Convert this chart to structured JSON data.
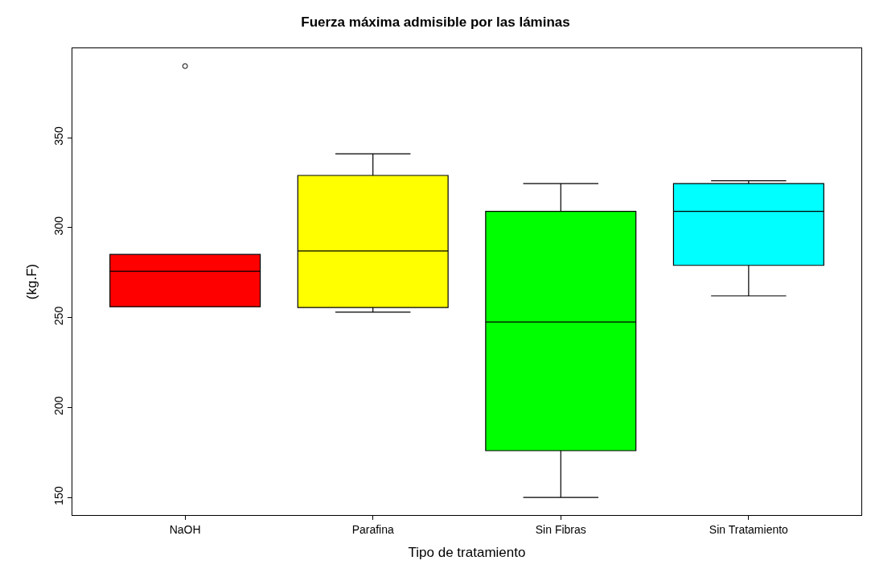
{
  "chart_data": {
    "type": "box",
    "title": "Fuerza máxima admisible por las láminas",
    "xlabel": "Tipo de tratamiento",
    "ylabel": "(kg.F)",
    "categories": [
      "NaOH",
      "Parafina",
      "Sin Fibras",
      "Sin Tratamiento"
    ],
    "colors": [
      "#ff0000",
      "#ffff00",
      "#00ff00",
      "#00ffff"
    ],
    "boxes": [
      {
        "low": 256,
        "q1": 256,
        "median": 275.7,
        "q3": 285.1,
        "high": 285.1,
        "outliers": [
          389.8
        ]
      },
      {
        "low": 253,
        "q1": 255.6,
        "median": 287,
        "q3": 329,
        "high": 341
      },
      {
        "low": 150,
        "q1": 176,
        "median": 247.5,
        "q3": 309,
        "high": 324.5
      },
      {
        "low": 262,
        "q1": 279,
        "median": 309,
        "q3": 324.5,
        "high": 326
      }
    ],
    "ylim": [
      140.2,
      399.7
    ],
    "yticks": [
      150,
      200,
      250,
      300,
      350
    ]
  }
}
